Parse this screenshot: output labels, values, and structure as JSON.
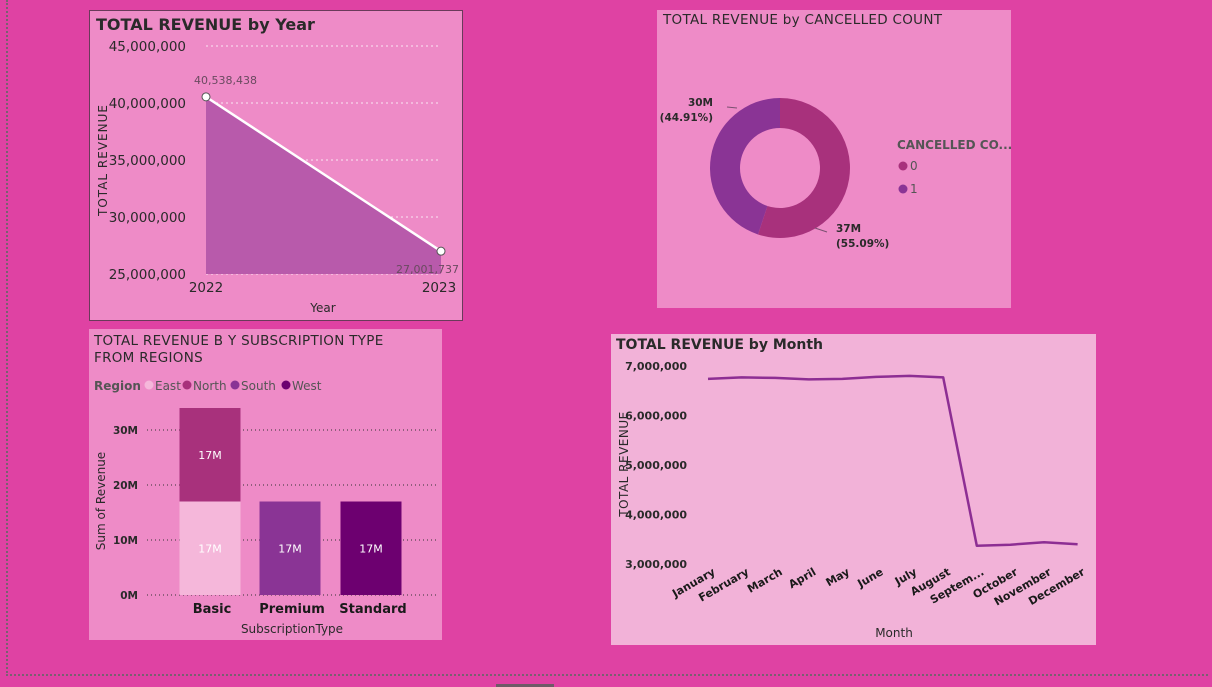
{
  "colors": {
    "page_bg": "#df42a3",
    "panel_bg": "#ee8bc7",
    "panel_bg_light": "#f2b2d8",
    "area_fill": "#b85aab",
    "east": "#f5b7da",
    "north": "#a8317c",
    "south": "#8a3495",
    "west": "#6d0070",
    "month_line": "#8d2e93",
    "donut_0": "#a8317c",
    "donut_1": "#8a3495"
  },
  "chart_data": [
    {
      "type": "area",
      "title": "TOTAL REVENUE by Year",
      "xlabel": "Year",
      "ylabel": "TOTAL REVENUE",
      "x": [
        "2022",
        "2023"
      ],
      "values": [
        40538438,
        27001737
      ],
      "data_labels": [
        "40,538,438",
        "27,001,737"
      ],
      "ylim": [
        25000000,
        45000000
      ],
      "yticks": [
        25000000,
        30000000,
        35000000,
        40000000,
        45000000
      ],
      "ytick_labels": [
        "25,000,000",
        "30,000,000",
        "35,000,000",
        "40,000,000",
        "45,000,000"
      ],
      "grid": true
    },
    {
      "type": "pie",
      "title": "TOTAL REVENUE by CANCELLED COUNT",
      "legend_title": "CANCELLED CO...",
      "legend_position": "right",
      "slices": [
        {
          "name": "0",
          "value": 55.09,
          "label": "37M",
          "pct_label": "(55.09%)"
        },
        {
          "name": "1",
          "value": 44.91,
          "label": "30M",
          "pct_label": "(44.91%)"
        }
      ]
    },
    {
      "type": "bar",
      "stacked": true,
      "title_lines": [
        "TOTAL REVENUE B Y SUBSCRIPTION TYPE",
        "FROM REGIONS"
      ],
      "legend_title": "Region",
      "legend_position": "top-left",
      "xlabel": "SubscriptionType",
      "ylabel": "Sum of Revenue",
      "categories": [
        "Basic",
        "Premium",
        "Standard"
      ],
      "series": [
        {
          "name": "East",
          "values": [
            17,
            0,
            0
          ],
          "labels": [
            "17M",
            "",
            ""
          ]
        },
        {
          "name": "North",
          "values": [
            17,
            0,
            0
          ],
          "labels": [
            "17M",
            "",
            ""
          ]
        },
        {
          "name": "South",
          "values": [
            0,
            17,
            0
          ],
          "labels": [
            "",
            "17M",
            ""
          ]
        },
        {
          "name": "West",
          "values": [
            0,
            0,
            17
          ],
          "labels": [
            "",
            "",
            "17M"
          ]
        }
      ],
      "ylim": [
        0,
        36
      ],
      "yticks": [
        0,
        10,
        20,
        30
      ],
      "ytick_labels": [
        "0M",
        "10M",
        "20M",
        "30M"
      ],
      "grid": true
    },
    {
      "type": "line",
      "title": "TOTAL REVENUE by Month",
      "xlabel": "Month",
      "ylabel": "TOTAL REVENUE",
      "categories": [
        "January",
        "February",
        "March",
        "April",
        "May",
        "June",
        "July",
        "August",
        "Septem...",
        "October",
        "November",
        "December"
      ],
      "values": [
        6740000,
        6770000,
        6760000,
        6730000,
        6740000,
        6780000,
        6800000,
        6770000,
        3370000,
        3390000,
        3440000,
        3400000
      ],
      "ylim": [
        3000000,
        7000000
      ],
      "yticks": [
        3000000,
        4000000,
        5000000,
        6000000,
        7000000
      ],
      "ytick_labels": [
        "3,000,000",
        "4,000,000",
        "5,000,000",
        "6,000,000",
        "7,000,000"
      ],
      "grid": false
    }
  ]
}
